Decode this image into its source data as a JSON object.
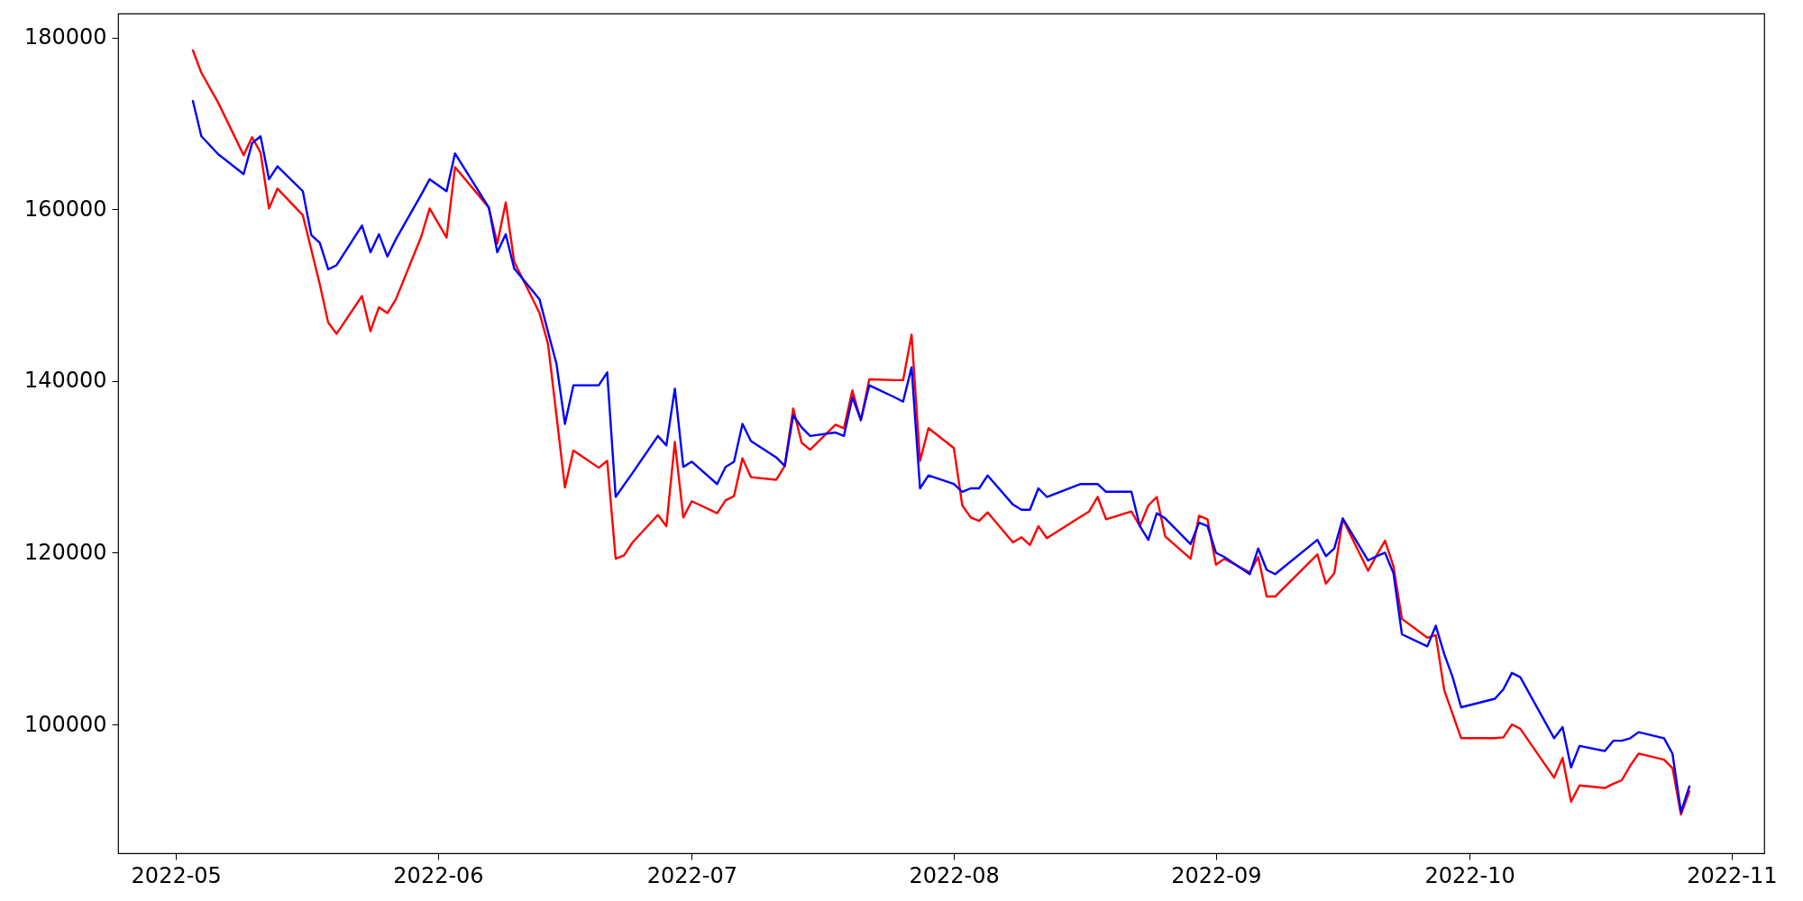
{
  "chart_data": {
    "type": "line",
    "x": [
      "2022-05-03",
      "2022-05-04",
      "2022-05-06",
      "2022-05-09",
      "2022-05-10",
      "2022-05-11",
      "2022-05-12",
      "2022-05-13",
      "2022-05-16",
      "2022-05-17",
      "2022-05-18",
      "2022-05-19",
      "2022-05-20",
      "2022-05-23",
      "2022-05-24",
      "2022-05-25",
      "2022-05-26",
      "2022-05-27",
      "2022-05-30",
      "2022-05-31",
      "2022-06-02",
      "2022-06-03",
      "2022-06-07",
      "2022-06-08",
      "2022-06-09",
      "2022-06-10",
      "2022-06-13",
      "2022-06-14",
      "2022-06-15",
      "2022-06-16",
      "2022-06-17",
      "2022-06-20",
      "2022-06-21",
      "2022-06-22",
      "2022-06-23",
      "2022-06-24",
      "2022-06-27",
      "2022-06-28",
      "2022-06-29",
      "2022-06-30",
      "2022-07-01",
      "2022-07-04",
      "2022-07-05",
      "2022-07-06",
      "2022-07-07",
      "2022-07-08",
      "2022-07-11",
      "2022-07-12",
      "2022-07-13",
      "2022-07-14",
      "2022-07-15",
      "2022-07-18",
      "2022-07-19",
      "2022-07-20",
      "2022-07-21",
      "2022-07-22",
      "2022-07-25",
      "2022-07-26",
      "2022-07-27",
      "2022-07-28",
      "2022-07-29",
      "2022-08-01",
      "2022-08-02",
      "2022-08-03",
      "2022-08-04",
      "2022-08-05",
      "2022-08-08",
      "2022-08-09",
      "2022-08-10",
      "2022-08-11",
      "2022-08-12",
      "2022-08-16",
      "2022-08-17",
      "2022-08-18",
      "2022-08-19",
      "2022-08-22",
      "2022-08-23",
      "2022-08-24",
      "2022-08-25",
      "2022-08-26",
      "2022-08-29",
      "2022-08-30",
      "2022-08-31",
      "2022-09-01",
      "2022-09-02",
      "2022-09-05",
      "2022-09-06",
      "2022-09-07",
      "2022-09-08",
      "2022-09-13",
      "2022-09-14",
      "2022-09-15",
      "2022-09-16",
      "2022-09-19",
      "2022-09-20",
      "2022-09-21",
      "2022-09-22",
      "2022-09-23",
      "2022-09-26",
      "2022-09-27",
      "2022-09-28",
      "2022-09-29",
      "2022-09-30",
      "2022-10-04",
      "2022-10-05",
      "2022-10-06",
      "2022-10-07",
      "2022-10-11",
      "2022-10-12",
      "2022-10-13",
      "2022-10-14",
      "2022-10-17",
      "2022-10-18",
      "2022-10-19",
      "2022-10-20",
      "2022-10-21",
      "2022-10-24",
      "2022-10-25",
      "2022-10-26",
      "2022-10-27"
    ],
    "series": [
      {
        "color": "#ff0000",
        "values": [
          178500,
          175900,
          172400,
          166300,
          168400,
          166600,
          160100,
          162400,
          159300,
          155300,
          151300,
          146800,
          145500,
          149900,
          145800,
          148600,
          147900,
          149500,
          156800,
          160100,
          156700,
          164900,
          160200,
          156000,
          160800,
          153900,
          147900,
          144300,
          136000,
          127600,
          131900,
          129900,
          130700,
          119300,
          119700,
          121200,
          124400,
          123100,
          132900,
          124100,
          126000,
          124600,
          126100,
          126600,
          131000,
          128800,
          128500,
          130100,
          136800,
          132800,
          132000,
          134900,
          134500,
          138900,
          135400,
          140200,
          140100,
          140100,
          145400,
          130700,
          134500,
          132200,
          125500,
          124100,
          123700,
          124700,
          121200,
          121800,
          120900,
          123100,
          121700,
          124200,
          124800,
          126500,
          123900,
          124800,
          123100,
          125500,
          126500,
          121900,
          119300,
          124300,
          123900,
          118600,
          119300,
          117700,
          119500,
          114900,
          114900,
          119800,
          116400,
          117600,
          123900,
          117900,
          119700,
          121400,
          118400,
          112300,
          110100,
          110400,
          104000,
          101200,
          98400,
          98400,
          98500,
          100000,
          99500,
          93800,
          96100,
          91000,
          92900,
          92600,
          93100,
          93500,
          95200,
          96600,
          95900,
          94900,
          89500,
          92200
        ]
      },
      {
        "color": "#0000ff",
        "values": [
          172600,
          168500,
          166400,
          164100,
          167700,
          168500,
          163500,
          165000,
          162100,
          157000,
          156100,
          153000,
          153500,
          158100,
          155000,
          157100,
          154500,
          156500,
          161700,
          163500,
          162100,
          166500,
          160200,
          155000,
          157100,
          153100,
          149500,
          145700,
          142000,
          135000,
          139500,
          139500,
          141000,
          126500,
          127900,
          129300,
          133600,
          132500,
          139100,
          130000,
          130600,
          128000,
          130000,
          130600,
          135000,
          133000,
          131100,
          130100,
          136000,
          134600,
          133600,
          134000,
          133600,
          138100,
          135500,
          139500,
          138100,
          137600,
          141600,
          127500,
          129000,
          128000,
          127100,
          127500,
          127500,
          129000,
          125600,
          125000,
          125000,
          127500,
          126500,
          128000,
          128000,
          128000,
          127100,
          127100,
          123100,
          121500,
          124600,
          124000,
          121000,
          123500,
          123100,
          120000,
          119500,
          117500,
          120500,
          118000,
          117500,
          121500,
          119600,
          120500,
          124000,
          119100,
          119600,
          120000,
          117600,
          110500,
          109100,
          111500,
          108200,
          105500,
          102000,
          103000,
          104100,
          106000,
          105500,
          98400,
          99700,
          95000,
          97500,
          96900,
          98100,
          98100,
          98400,
          99100,
          98400,
          96600,
          89800,
          92800
        ]
      }
    ],
    "xlim": [
      "2022-04-24T03:36",
      "2022-11-04T20:24"
    ],
    "xticks": [
      "2022-05",
      "2022-06",
      "2022-07",
      "2022-08",
      "2022-09",
      "2022-10",
      "2022-11"
    ],
    "ylim": [
      85000,
      182800
    ],
    "yticks": [
      100000,
      120000,
      140000,
      160000,
      180000
    ],
    "grid": false
  }
}
